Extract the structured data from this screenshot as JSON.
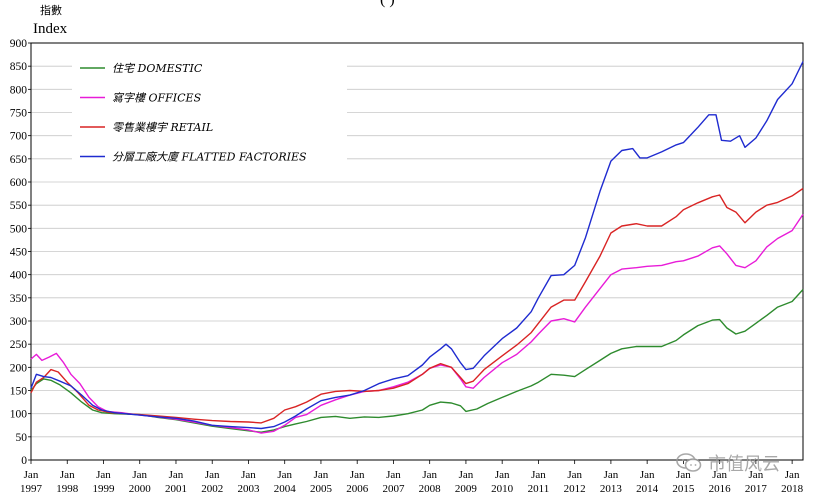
{
  "chart_data": {
    "type": "line",
    "title_fragment": "(        )",
    "ylabel_zh": "指數",
    "ylabel": "Index",
    "ylim": [
      0,
      900
    ],
    "yticks": [
      0,
      50,
      100,
      150,
      200,
      250,
      300,
      350,
      400,
      450,
      500,
      550,
      600,
      650,
      700,
      750,
      800,
      850,
      900
    ],
    "xlim": [
      1997.0,
      2018.3
    ],
    "xticks": [
      {
        "top": "Jan",
        "bottom": "1997",
        "x": 1997
      },
      {
        "top": "Jan",
        "bottom": "1998",
        "x": 1998
      },
      {
        "top": "Jan",
        "bottom": "1999",
        "x": 1999
      },
      {
        "top": "Jan",
        "bottom": "2000",
        "x": 2000
      },
      {
        "top": "Jan",
        "bottom": "2001",
        "x": 2001
      },
      {
        "top": "Jan",
        "bottom": "2002",
        "x": 2002
      },
      {
        "top": "Jan",
        "bottom": "2003",
        "x": 2003
      },
      {
        "top": "Jan",
        "bottom": "2004",
        "x": 2004
      },
      {
        "top": "Jan",
        "bottom": "2005",
        "x": 2005
      },
      {
        "top": "Jan",
        "bottom": "2006",
        "x": 2006
      },
      {
        "top": "Jan",
        "bottom": "2007",
        "x": 2007
      },
      {
        "top": "Jan",
        "bottom": "2008",
        "x": 2008
      },
      {
        "top": "Jan",
        "bottom": "2009",
        "x": 2009
      },
      {
        "top": "Jan",
        "bottom": "2010",
        "x": 2010
      },
      {
        "top": "Jan",
        "bottom": "2011",
        "x": 2011
      },
      {
        "top": "Jan",
        "bottom": "2012",
        "x": 2012
      },
      {
        "top": "Jan",
        "bottom": "2013",
        "x": 2013
      },
      {
        "top": "Jan",
        "bottom": "2014",
        "x": 2014
      },
      {
        "top": "Jan",
        "bottom": "2015",
        "x": 2015
      },
      {
        "top": "Jan",
        "bottom": "2016",
        "x": 2016
      },
      {
        "top": "Jan",
        "bottom": "2017",
        "x": 2017
      },
      {
        "top": "Jan",
        "bottom": "2018",
        "x": 2018
      }
    ],
    "grid": true,
    "legend_position": "top-left",
    "series": [
      {
        "name": "住宅  DOMESTIC",
        "color": "#2e8b2e",
        "points": [
          [
            1997.0,
            150
          ],
          [
            1997.15,
            165
          ],
          [
            1997.35,
            175
          ],
          [
            1997.55,
            172
          ],
          [
            1997.8,
            162
          ],
          [
            1998.1,
            145
          ],
          [
            1998.4,
            125
          ],
          [
            1998.7,
            108
          ],
          [
            1998.95,
            102
          ],
          [
            1999.3,
            100
          ],
          [
            1999.6,
            99
          ],
          [
            2000.0,
            98
          ],
          [
            2000.5,
            92
          ],
          [
            2001.0,
            87
          ],
          [
            2001.5,
            80
          ],
          [
            2002.0,
            73
          ],
          [
            2002.5,
            68
          ],
          [
            2003.0,
            63
          ],
          [
            2003.35,
            60
          ],
          [
            2003.7,
            65
          ],
          [
            2004.0,
            72
          ],
          [
            2004.3,
            78
          ],
          [
            2004.6,
            83
          ],
          [
            2005.0,
            92
          ],
          [
            2005.4,
            94
          ],
          [
            2005.8,
            90
          ],
          [
            2006.2,
            93
          ],
          [
            2006.6,
            92
          ],
          [
            2007.0,
            95
          ],
          [
            2007.4,
            100
          ],
          [
            2007.8,
            108
          ],
          [
            2008.0,
            118
          ],
          [
            2008.3,
            125
          ],
          [
            2008.6,
            123
          ],
          [
            2008.85,
            117
          ],
          [
            2009.0,
            105
          ],
          [
            2009.3,
            110
          ],
          [
            2009.6,
            122
          ],
          [
            2010.0,
            135
          ],
          [
            2010.4,
            148
          ],
          [
            2010.8,
            160
          ],
          [
            2011.0,
            168
          ],
          [
            2011.35,
            185
          ],
          [
            2011.7,
            183
          ],
          [
            2012.0,
            180
          ],
          [
            2012.3,
            195
          ],
          [
            2012.7,
            215
          ],
          [
            2013.0,
            230
          ],
          [
            2013.3,
            240
          ],
          [
            2013.7,
            245
          ],
          [
            2014.0,
            245
          ],
          [
            2014.4,
            245
          ],
          [
            2014.8,
            258
          ],
          [
            2015.0,
            270
          ],
          [
            2015.4,
            290
          ],
          [
            2015.8,
            302
          ],
          [
            2016.0,
            303
          ],
          [
            2016.2,
            285
          ],
          [
            2016.45,
            272
          ],
          [
            2016.7,
            278
          ],
          [
            2017.0,
            295
          ],
          [
            2017.3,
            312
          ],
          [
            2017.6,
            330
          ],
          [
            2018.0,
            342
          ],
          [
            2018.3,
            368
          ]
        ]
      },
      {
        "name": "寫字樓  OFFICES",
        "color": "#e81cd8",
        "points": [
          [
            1997.0,
            218
          ],
          [
            1997.15,
            228
          ],
          [
            1997.3,
            215
          ],
          [
            1997.5,
            222
          ],
          [
            1997.7,
            230
          ],
          [
            1997.9,
            210
          ],
          [
            1998.1,
            185
          ],
          [
            1998.35,
            165
          ],
          [
            1998.6,
            135
          ],
          [
            1998.85,
            115
          ],
          [
            1999.1,
            105
          ],
          [
            1999.5,
            102
          ],
          [
            2000.0,
            97
          ],
          [
            2000.5,
            93
          ],
          [
            2001.0,
            88
          ],
          [
            2001.5,
            82
          ],
          [
            2002.0,
            75
          ],
          [
            2002.5,
            70
          ],
          [
            2003.0,
            65
          ],
          [
            2003.35,
            58
          ],
          [
            2003.7,
            62
          ],
          [
            2004.0,
            75
          ],
          [
            2004.3,
            92
          ],
          [
            2004.6,
            98
          ],
          [
            2005.0,
            118
          ],
          [
            2005.4,
            130
          ],
          [
            2005.8,
            140
          ],
          [
            2006.2,
            148
          ],
          [
            2006.6,
            150
          ],
          [
            2007.0,
            158
          ],
          [
            2007.4,
            168
          ],
          [
            2007.8,
            185
          ],
          [
            2008.0,
            198
          ],
          [
            2008.3,
            205
          ],
          [
            2008.6,
            200
          ],
          [
            2008.85,
            175
          ],
          [
            2009.0,
            158
          ],
          [
            2009.2,
            155
          ],
          [
            2009.5,
            178
          ],
          [
            2010.0,
            210
          ],
          [
            2010.4,
            228
          ],
          [
            2010.8,
            255
          ],
          [
            2011.0,
            272
          ],
          [
            2011.35,
            300
          ],
          [
            2011.7,
            305
          ],
          [
            2012.0,
            298
          ],
          [
            2012.3,
            330
          ],
          [
            2012.7,
            370
          ],
          [
            2013.0,
            400
          ],
          [
            2013.3,
            412
          ],
          [
            2013.7,
            415
          ],
          [
            2014.0,
            418
          ],
          [
            2014.4,
            420
          ],
          [
            2014.8,
            428
          ],
          [
            2015.0,
            430
          ],
          [
            2015.4,
            440
          ],
          [
            2015.8,
            458
          ],
          [
            2016.0,
            462
          ],
          [
            2016.2,
            445
          ],
          [
            2016.45,
            420
          ],
          [
            2016.7,
            415
          ],
          [
            2017.0,
            430
          ],
          [
            2017.3,
            460
          ],
          [
            2017.6,
            478
          ],
          [
            2018.0,
            495
          ],
          [
            2018.3,
            530
          ]
        ]
      },
      {
        "name": "零售業樓宇  RETAIL",
        "color": "#d92424",
        "points": [
          [
            1997.0,
            145
          ],
          [
            1997.15,
            168
          ],
          [
            1997.35,
            178
          ],
          [
            1997.55,
            195
          ],
          [
            1997.75,
            190
          ],
          [
            1998.0,
            168
          ],
          [
            1998.3,
            145
          ],
          [
            1998.6,
            118
          ],
          [
            1998.85,
            108
          ],
          [
            1999.2,
            102
          ],
          [
            1999.6,
            100
          ],
          [
            2000.0,
            98
          ],
          [
            2000.5,
            95
          ],
          [
            2001.0,
            92
          ],
          [
            2001.5,
            88
          ],
          [
            2002.0,
            85
          ],
          [
            2002.5,
            83
          ],
          [
            2003.0,
            82
          ],
          [
            2003.35,
            80
          ],
          [
            2003.7,
            90
          ],
          [
            2004.0,
            108
          ],
          [
            2004.3,
            115
          ],
          [
            2004.6,
            125
          ],
          [
            2005.0,
            142
          ],
          [
            2005.4,
            148
          ],
          [
            2005.8,
            150
          ],
          [
            2006.2,
            148
          ],
          [
            2006.6,
            150
          ],
          [
            2007.0,
            155
          ],
          [
            2007.4,
            165
          ],
          [
            2007.8,
            185
          ],
          [
            2008.0,
            198
          ],
          [
            2008.3,
            208
          ],
          [
            2008.6,
            200
          ],
          [
            2008.85,
            178
          ],
          [
            2009.0,
            165
          ],
          [
            2009.2,
            170
          ],
          [
            2009.5,
            195
          ],
          [
            2010.0,
            225
          ],
          [
            2010.4,
            248
          ],
          [
            2010.8,
            275
          ],
          [
            2011.0,
            295
          ],
          [
            2011.35,
            330
          ],
          [
            2011.7,
            345
          ],
          [
            2012.0,
            345
          ],
          [
            2012.3,
            385
          ],
          [
            2012.7,
            440
          ],
          [
            2013.0,
            490
          ],
          [
            2013.3,
            505
          ],
          [
            2013.7,
            510
          ],
          [
            2014.0,
            505
          ],
          [
            2014.4,
            505
          ],
          [
            2014.8,
            525
          ],
          [
            2015.0,
            540
          ],
          [
            2015.4,
            555
          ],
          [
            2015.8,
            568
          ],
          [
            2016.0,
            572
          ],
          [
            2016.2,
            545
          ],
          [
            2016.45,
            535
          ],
          [
            2016.7,
            512
          ],
          [
            2017.0,
            535
          ],
          [
            2017.3,
            550
          ],
          [
            2017.6,
            556
          ],
          [
            2018.0,
            570
          ],
          [
            2018.3,
            586
          ]
        ]
      },
      {
        "name": "分層工廠大廈  FLATTED FACTORIES",
        "color": "#1f2bd0",
        "points": [
          [
            1997.0,
            155
          ],
          [
            1997.15,
            185
          ],
          [
            1997.35,
            180
          ],
          [
            1997.55,
            178
          ],
          [
            1997.8,
            170
          ],
          [
            1998.1,
            160
          ],
          [
            1998.4,
            140
          ],
          [
            1998.7,
            118
          ],
          [
            1998.95,
            108
          ],
          [
            1999.3,
            102
          ],
          [
            1999.6,
            100
          ],
          [
            2000.0,
            97
          ],
          [
            2000.5,
            93
          ],
          [
            2001.0,
            90
          ],
          [
            2001.5,
            84
          ],
          [
            2002.0,
            75
          ],
          [
            2002.5,
            72
          ],
          [
            2003.0,
            70
          ],
          [
            2003.35,
            68
          ],
          [
            2003.7,
            72
          ],
          [
            2004.0,
            82
          ],
          [
            2004.3,
            95
          ],
          [
            2004.6,
            110
          ],
          [
            2005.0,
            128
          ],
          [
            2005.4,
            135
          ],
          [
            2005.8,
            140
          ],
          [
            2006.2,
            150
          ],
          [
            2006.6,
            165
          ],
          [
            2007.0,
            175
          ],
          [
            2007.4,
            182
          ],
          [
            2007.8,
            205
          ],
          [
            2008.0,
            222
          ],
          [
            2008.3,
            240
          ],
          [
            2008.45,
            250
          ],
          [
            2008.6,
            240
          ],
          [
            2008.85,
            210
          ],
          [
            2009.0,
            195
          ],
          [
            2009.2,
            198
          ],
          [
            2009.5,
            225
          ],
          [
            2010.0,
            262
          ],
          [
            2010.4,
            285
          ],
          [
            2010.8,
            320
          ],
          [
            2011.0,
            350
          ],
          [
            2011.35,
            398
          ],
          [
            2011.7,
            400
          ],
          [
            2012.0,
            420
          ],
          [
            2012.3,
            480
          ],
          [
            2012.7,
            580
          ],
          [
            2013.0,
            645
          ],
          [
            2013.3,
            668
          ],
          [
            2013.6,
            672
          ],
          [
            2013.8,
            652
          ],
          [
            2014.0,
            652
          ],
          [
            2014.4,
            665
          ],
          [
            2014.8,
            680
          ],
          [
            2015.0,
            685
          ],
          [
            2015.4,
            718
          ],
          [
            2015.7,
            745
          ],
          [
            2015.9,
            745
          ],
          [
            2016.05,
            690
          ],
          [
            2016.3,
            688
          ],
          [
            2016.55,
            700
          ],
          [
            2016.7,
            675
          ],
          [
            2017.0,
            695
          ],
          [
            2017.3,
            732
          ],
          [
            2017.6,
            778
          ],
          [
            2018.0,
            812
          ],
          [
            2018.3,
            860
          ]
        ]
      }
    ]
  },
  "watermark": {
    "text": "市值风云",
    "icon": "wechat-bubbles-icon"
  }
}
